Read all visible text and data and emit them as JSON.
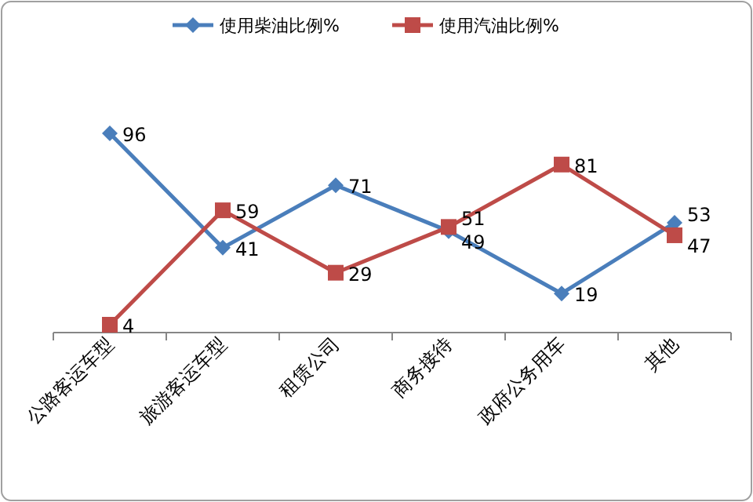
{
  "chart_data": {
    "type": "line",
    "categories": [
      "公路客运车型",
      "旅游客运车型",
      "租赁公司",
      "商务接待",
      "政府公务用车",
      "其他"
    ],
    "series": [
      {
        "name": "使用柴油比例%",
        "color": "#4a7ebb",
        "marker": "diamond",
        "values": [
          96,
          41,
          71,
          49,
          19,
          53
        ]
      },
      {
        "name": "使用汽油比例%",
        "color": "#be4b48",
        "marker": "square",
        "values": [
          4,
          59,
          29,
          51,
          81,
          47
        ]
      }
    ],
    "data_labels": true,
    "legend": "top",
    "grid": false,
    "tick_labels": "x"
  }
}
